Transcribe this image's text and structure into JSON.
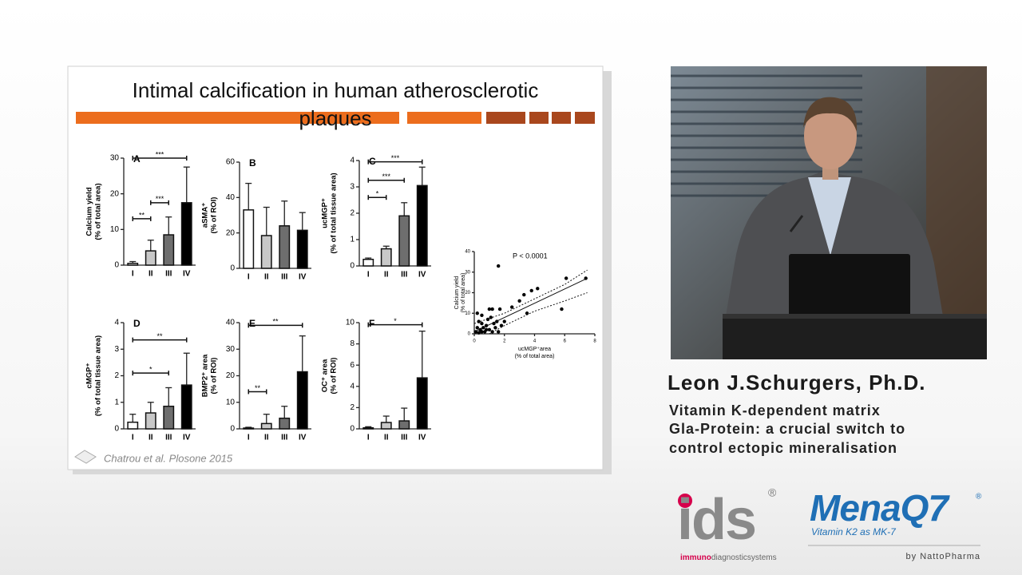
{
  "slide": {
    "title_lines": [
      "Intimal calcification in human atherosclerotic",
      "plaques"
    ],
    "citation": "Chatrou et al. Plosone 2015"
  },
  "chart_data": [
    {
      "type": "bar",
      "panel": "A",
      "ylabel": [
        "Calcium yield",
        "(% of total area)"
      ],
      "categories": [
        "I",
        "II",
        "III",
        "IV"
      ],
      "values": [
        0.5,
        4,
        8.5,
        17.5
      ],
      "errors": [
        0.5,
        3,
        5,
        10
      ],
      "colors": [
        "#ffffff",
        "#c8c8c8",
        "#6e6e6e",
        "#000000"
      ],
      "ylim": [
        0,
        30
      ],
      "yticks": [
        0,
        10,
        20,
        30
      ],
      "significance": [
        {
          "between": [
            "I",
            "IV"
          ],
          "y": 30,
          "label": "***"
        },
        {
          "between": [
            "I",
            "II"
          ],
          "y": 13,
          "label": "**"
        },
        {
          "between": [
            "II",
            "III"
          ],
          "y": 17.5,
          "label": "***"
        }
      ]
    },
    {
      "type": "bar",
      "panel": "B",
      "ylabel": [
        "aSMA⁺",
        "(% of ROI)"
      ],
      "categories": [
        "I",
        "II",
        "III",
        "IV"
      ],
      "values": [
        33,
        18.5,
        24,
        21.5
      ],
      "errors": [
        15,
        16,
        14,
        10
      ],
      "colors": [
        "#ffffff",
        "#c8c8c8",
        "#6e6e6e",
        "#000000"
      ],
      "ylim": [
        0,
        60
      ],
      "yticks": [
        0,
        20,
        40,
        60
      ],
      "significance": []
    },
    {
      "type": "bar",
      "panel": "C",
      "ylabel": [
        "ucMGP⁺",
        "(% of total tissue area)"
      ],
      "categories": [
        "I",
        "II",
        "III",
        "IV"
      ],
      "values": [
        0.25,
        0.65,
        1.9,
        3.05
      ],
      "errors": [
        0.05,
        0.1,
        0.5,
        0.7
      ],
      "colors": [
        "#ffffff",
        "#c8c8c8",
        "#6e6e6e",
        "#000000"
      ],
      "ylim": [
        0,
        4
      ],
      "yticks": [
        0,
        1,
        2,
        3,
        4
      ],
      "significance": [
        {
          "between": [
            "I",
            "IV"
          ],
          "y": 3.95,
          "label": "***"
        },
        {
          "between": [
            "I",
            "III"
          ],
          "y": 3.25,
          "label": "***"
        },
        {
          "between": [
            "I",
            "II"
          ],
          "y": 2.6,
          "label": "*"
        }
      ]
    },
    {
      "type": "bar",
      "panel": "D",
      "ylabel": [
        "cMGP⁺",
        "(% of total tissue area)"
      ],
      "categories": [
        "I",
        "II",
        "III",
        "IV"
      ],
      "values": [
        0.25,
        0.6,
        0.85,
        1.65
      ],
      "errors": [
        0.3,
        0.4,
        0.7,
        1.2
      ],
      "colors": [
        "#ffffff",
        "#c8c8c8",
        "#6e6e6e",
        "#000000"
      ],
      "ylim": [
        0,
        4
      ],
      "yticks": [
        0,
        1,
        2,
        3,
        4
      ],
      "significance": [
        {
          "between": [
            "I",
            "IV"
          ],
          "y": 3.35,
          "label": "**"
        },
        {
          "between": [
            "I",
            "III"
          ],
          "y": 2.1,
          "label": "*"
        }
      ]
    },
    {
      "type": "bar",
      "panel": "E",
      "ylabel": [
        "BMP2⁺ area",
        "(% of ROI)"
      ],
      "categories": [
        "I",
        "II",
        "III",
        "IV"
      ],
      "values": [
        0.3,
        2,
        4,
        21.5
      ],
      "errors": [
        0.3,
        3.5,
        4.5,
        13.5
      ],
      "colors": [
        "#ffffff",
        "#c8c8c8",
        "#6e6e6e",
        "#000000"
      ],
      "ylim": [
        0,
        40
      ],
      "yticks": [
        0,
        10,
        20,
        30,
        40
      ],
      "significance": [
        {
          "between": [
            "I",
            "IV"
          ],
          "y": 39,
          "label": "**"
        },
        {
          "between": [
            "I",
            "II"
          ],
          "y": 14,
          "label": "**"
        }
      ]
    },
    {
      "type": "bar",
      "panel": "F",
      "ylabel": [
        "OC⁺ area",
        "(% of ROI)"
      ],
      "categories": [
        "I",
        "II",
        "III",
        "IV"
      ],
      "values": [
        0.1,
        0.6,
        0.75,
        4.8
      ],
      "errors": [
        0.1,
        0.6,
        1.2,
        4.4
      ],
      "colors": [
        "#ffffff",
        "#c8c8c8",
        "#6e6e6e",
        "#000000"
      ],
      "ylim": [
        0,
        10
      ],
      "yticks": [
        0,
        2,
        4,
        6,
        8,
        10
      ],
      "significance": [
        {
          "between": [
            "I",
            "IV"
          ],
          "y": 9.8,
          "label": "*"
        }
      ]
    },
    {
      "type": "scatter",
      "annotation": "P < 0.0001",
      "xlabel": [
        "ucMGP⁺area",
        "(% of total area)"
      ],
      "ylabel": [
        "Calcium yield",
        "(% of total area)"
      ],
      "x": [
        0.1,
        0.2,
        0.3,
        0.3,
        0.4,
        0.5,
        0.5,
        0.6,
        0.7,
        0.8,
        0.9,
        1.0,
        1.0,
        1.1,
        1.2,
        1.3,
        1.4,
        1.5,
        1.6,
        1.7,
        1.8,
        2.0,
        0.2,
        0.5,
        0.8,
        1.2,
        2.5,
        3.0,
        3.3,
        3.5,
        3.8,
        4.2,
        5.8,
        6.1,
        7.4,
        1.6
      ],
      "y": [
        1,
        3,
        0.5,
        6,
        2,
        5,
        9,
        3,
        1,
        4,
        7,
        12,
        2,
        8,
        12,
        5,
        3,
        6,
        33,
        12,
        4,
        6,
        10,
        1,
        2,
        1,
        13,
        16,
        19,
        10,
        21,
        22,
        12,
        27,
        27,
        1
      ],
      "color": "#000000",
      "fit": {
        "x": [
          0,
          7.5
        ],
        "y": [
          1,
          27
        ]
      },
      "ci_upper": {
        "x": [
          0,
          2,
          4,
          6,
          7.5
        ],
        "y": [
          5,
          10,
          17,
          24,
          31
        ]
      },
      "ci_lower": {
        "x": [
          1,
          2,
          4,
          6,
          7.5
        ],
        "y": [
          0,
          4,
          11,
          16,
          20
        ]
      },
      "xlim": [
        0,
        8
      ],
      "xticks": [
        0,
        2,
        4,
        6,
        8
      ],
      "ylim": [
        0,
        40
      ],
      "yticks": [
        0,
        10,
        20,
        30,
        40
      ]
    }
  ],
  "speaker": {
    "name": "Leon J.Schurgers, Ph.D.",
    "talk_lines": [
      "Vitamin K-dependent matrix",
      "Gla-Protein:  a crucial switch to",
      "control ectopic mineralisation"
    ]
  },
  "logos": {
    "ids": {
      "mark": "ids",
      "registered": "®",
      "tagline_a": "immuno",
      "tagline_b": "diagnosticsystems"
    },
    "menaq7": {
      "mark": "MenaQ7",
      "registered": "®",
      "tagline": "Vitamin K2 as MK-7",
      "by": "by NattoPharma"
    }
  }
}
